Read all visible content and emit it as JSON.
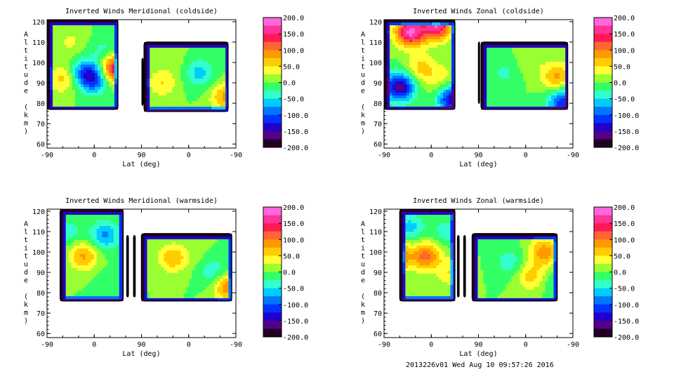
{
  "footer": "2013226v01 Wed Aug 10 09:57:26 2016",
  "colorbar": {
    "ticks": [
      "200.0",
      "150.0",
      "100.0",
      "50.0",
      "0.0",
      "-50.0",
      "-100.0",
      "-150.0",
      "-200.0"
    ],
    "colors": [
      "#ff66dd",
      "#ff3399",
      "#ff1a55",
      "#ff6633",
      "#ff9900",
      "#ffcc00",
      "#ffff33",
      "#99ff33",
      "#33ff66",
      "#33ffcc",
      "#00ccff",
      "#0077ff",
      "#0033ff",
      "#2200cc",
      "#550088",
      "#220022"
    ]
  },
  "chart_data": [
    {
      "type": "heatmap",
      "title": "Inverted Winds Meridional (coldside)",
      "xlabel": "Lat (deg)",
      "ylabel": "Altitude (km)",
      "xticks": [
        "-90",
        "0",
        "90",
        "0",
        "-90"
      ],
      "yticks": [
        60,
        70,
        80,
        90,
        100,
        110,
        120
      ],
      "ylim": [
        58,
        121
      ],
      "zlim": [
        -200,
        200
      ],
      "blobs": [
        {
          "lat": -60,
          "alt": 92,
          "v": 60
        },
        {
          "lat": -45,
          "alt": 110,
          "v": 30
        },
        {
          "lat": -20,
          "alt": 95,
          "v": -70
        },
        {
          "lat": 0,
          "alt": 92,
          "v": -110
        },
        {
          "lat": 40,
          "alt": 97,
          "v": 170
        },
        {
          "lat": 20,
          "alt": 105,
          "v": -40
        },
        {
          "lat": 130,
          "alt": 90,
          "v": 50
        },
        {
          "lat": 160,
          "alt": 100,
          "v": 10
        },
        {
          "lat": 200,
          "alt": 95,
          "v": -60
        },
        {
          "lat": 250,
          "alt": 83,
          "v": 80
        }
      ]
    },
    {
      "type": "heatmap",
      "title": "Inverted Winds Zonal (coldside)",
      "xlabel": "Lat (deg)",
      "ylabel": "Altitude (km)",
      "xticks": [
        "-90",
        "0",
        "90",
        "0",
        "-90"
      ],
      "yticks": [
        60,
        70,
        80,
        90,
        100,
        110,
        120
      ],
      "ylim": [
        58,
        121
      ],
      "zlim": [
        -200,
        200
      ],
      "blobs": [
        {
          "lat": -40,
          "alt": 115,
          "v": 180
        },
        {
          "lat": 10,
          "alt": 118,
          "v": 170
        },
        {
          "lat": -60,
          "alt": 88,
          "v": -160
        },
        {
          "lat": -20,
          "alt": 97,
          "v": 60
        },
        {
          "lat": 20,
          "alt": 92,
          "v": 40
        },
        {
          "lat": 40,
          "alt": 82,
          "v": -140
        },
        {
          "lat": 140,
          "alt": 95,
          "v": -30
        },
        {
          "lat": 190,
          "alt": 100,
          "v": 20
        },
        {
          "lat": 240,
          "alt": 93,
          "v": 80
        },
        {
          "lat": 250,
          "alt": 80,
          "v": -120
        }
      ]
    },
    {
      "type": "heatmap",
      "title": "Inverted Winds Meridional (warmside)",
      "xlabel": "Lat (deg)",
      "ylabel": "Altitude (km)",
      "xticks": [
        "-90",
        "0",
        "90",
        "0",
        "-90"
      ],
      "yticks": [
        60,
        70,
        80,
        90,
        100,
        110,
        120
      ],
      "ylim": [
        58,
        121
      ],
      "zlim": [
        -200,
        200
      ],
      "blobs": [
        {
          "lat": -20,
          "alt": 98,
          "v": 80
        },
        {
          "lat": -50,
          "alt": 110,
          "v": -40
        },
        {
          "lat": 20,
          "alt": 108,
          "v": -80
        },
        {
          "lat": 30,
          "alt": 85,
          "v": -20
        },
        {
          "lat": 150,
          "alt": 97,
          "v": 70
        },
        {
          "lat": 190,
          "alt": 100,
          "v": 10
        },
        {
          "lat": 230,
          "alt": 90,
          "v": -50
        },
        {
          "lat": 255,
          "alt": 83,
          "v": 100
        }
      ]
    },
    {
      "type": "heatmap",
      "title": "Inverted Winds Zonal (warmside)",
      "xlabel": "Lat (deg)",
      "ylabel": "Altitude (km)",
      "xticks": [
        "-90",
        "0",
        "90",
        "0",
        "-90"
      ],
      "yticks": [
        60,
        70,
        80,
        90,
        100,
        110,
        120
      ],
      "ylim": [
        58,
        121
      ],
      "zlim": [
        -200,
        200
      ],
      "blobs": [
        {
          "lat": -70,
          "alt": 98,
          "v": 140
        },
        {
          "lat": -10,
          "alt": 98,
          "v": 110
        },
        {
          "lat": -40,
          "alt": 112,
          "v": -60
        },
        {
          "lat": 30,
          "alt": 110,
          "v": -40
        },
        {
          "lat": 40,
          "alt": 90,
          "v": 50
        },
        {
          "lat": 150,
          "alt": 95,
          "v": -40
        },
        {
          "lat": 190,
          "alt": 88,
          "v": 60
        },
        {
          "lat": 215,
          "alt": 100,
          "v": 90
        },
        {
          "lat": 240,
          "alt": 85,
          "v": -30
        }
      ]
    }
  ]
}
